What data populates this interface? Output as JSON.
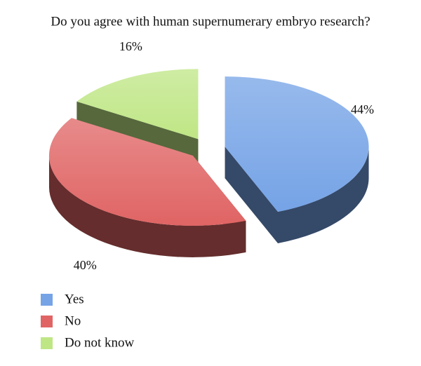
{
  "chart_data": {
    "type": "pie3d",
    "title": "Do you agree with human supernumerary embryo research?",
    "categories": [
      "Yes",
      "No",
      "Do not know"
    ],
    "values": [
      44,
      40,
      16
    ],
    "value_labels": [
      "44%",
      "40%",
      "16%"
    ],
    "colors": [
      "#75a3e6",
      "#e06464",
      "#bfe685"
    ],
    "legend": "bottom-left"
  }
}
